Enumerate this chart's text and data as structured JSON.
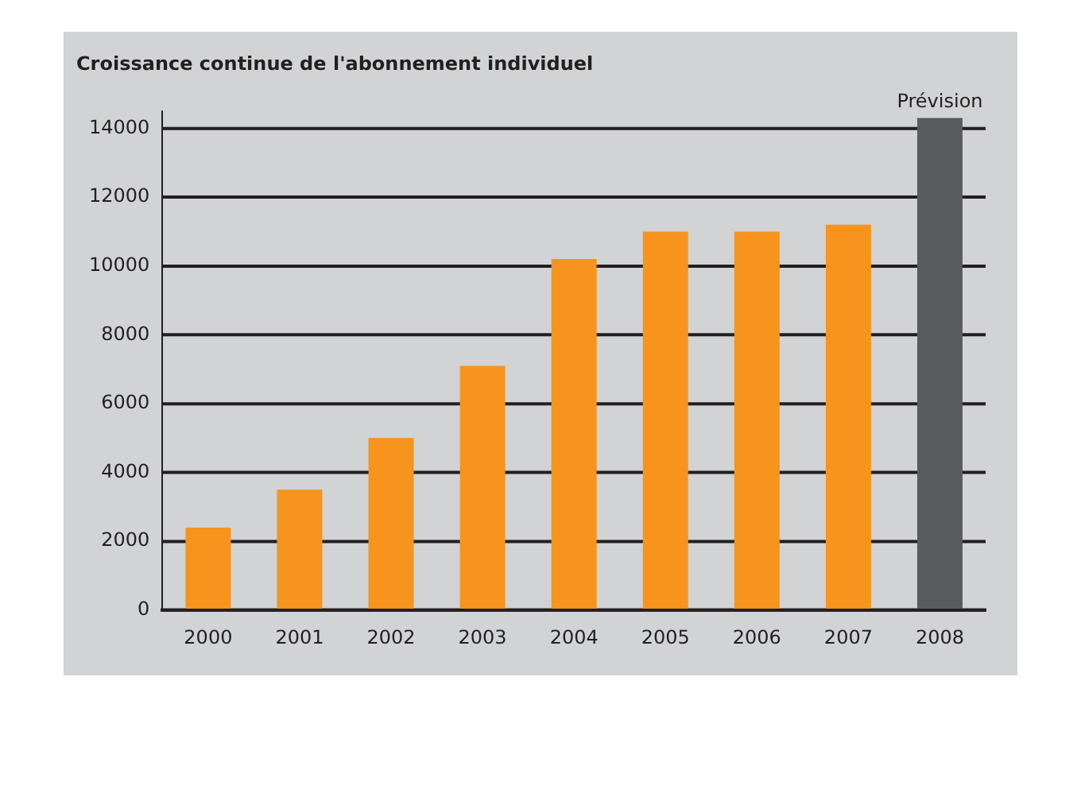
{
  "chart_data": {
    "type": "bar",
    "title": "Croissance continue de l'abonnement individuel",
    "categories": [
      "2000",
      "2001",
      "2002",
      "2003",
      "2004",
      "2005",
      "2006",
      "2007",
      "2008"
    ],
    "values": [
      2400,
      3500,
      5000,
      7100,
      10200,
      11000,
      11000,
      11200,
      14300
    ],
    "colors": [
      "#f7941d",
      "#f7941d",
      "#f7941d",
      "#f7941d",
      "#f7941d",
      "#f7941d",
      "#f7941d",
      "#f7941d",
      "#5a5b5d"
    ],
    "ylim": [
      0,
      14500
    ],
    "yticks": [
      0,
      2000,
      4000,
      6000,
      8000,
      10000,
      12000,
      14000
    ],
    "grid": "y",
    "legend": false,
    "annotations": [
      {
        "text": "Prévision",
        "x": "2008",
        "y": 14300
      }
    ]
  }
}
